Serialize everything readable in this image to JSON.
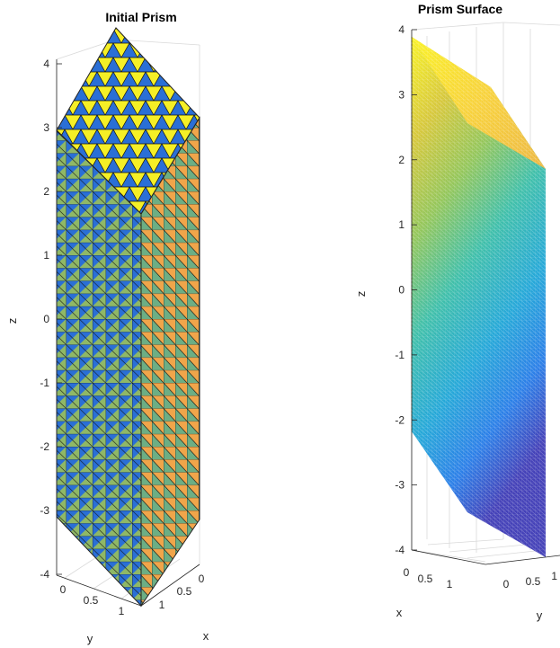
{
  "colors": {
    "blue": "#2a6fd6",
    "yellow": "#f5ef26",
    "teal": "#3aa89a",
    "orange": "#f0a54a",
    "mesh": "#1a1a1a"
  },
  "chart_data": [
    {
      "type": "surface",
      "title": "Initial Prism",
      "xlabel": "x",
      "ylabel": "y",
      "zlabel": "z",
      "zlim": [
        -4,
        4
      ],
      "ztick_labels": [
        "-4",
        "-3",
        "-2",
        "-1",
        "0",
        "1",
        "2",
        "3",
        "4"
      ],
      "xtick_labels": [
        "0",
        "0.5",
        "1"
      ],
      "ytick_labels": [
        "0",
        "0.5",
        "1"
      ],
      "colormap": "triangulated faces in blue/yellow (top) and blue/teal/orange (sides)"
    },
    {
      "type": "surface",
      "title": "Prism Surface",
      "xlabel": "x",
      "ylabel": "y",
      "zlabel": "z",
      "zlim": [
        -4,
        4
      ],
      "ztick_labels": [
        "-4",
        "-3",
        "-2",
        "-1",
        "0",
        "1",
        "2",
        "3",
        "4"
      ],
      "xtick_labels": [
        "0",
        "0.5",
        "1"
      ],
      "ytick_labels": [
        "0",
        "0.5",
        "1"
      ],
      "colormap": "parula (blue to yellow by height)"
    }
  ]
}
